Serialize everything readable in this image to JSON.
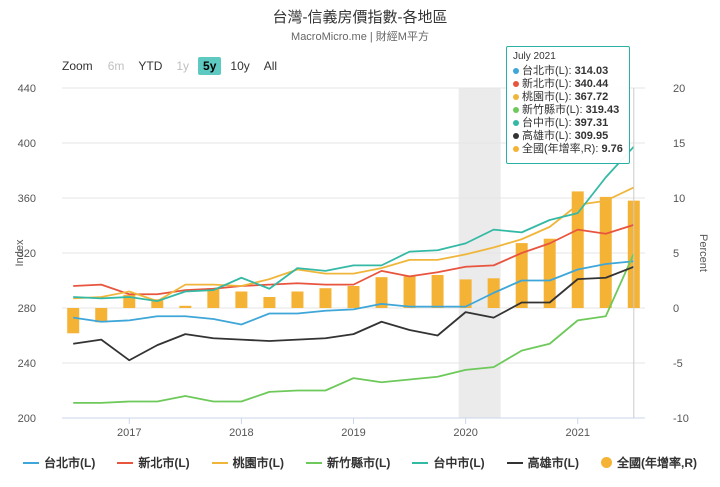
{
  "title": "台灣-信義房價指數-各地區",
  "subtitle": "MacroMicro.me | 財經M平方",
  "zoom": {
    "label": "Zoom",
    "buttons": [
      "6m",
      "YTD",
      "1y",
      "5y",
      "10y",
      "All"
    ],
    "selected": "5y"
  },
  "tooltip": {
    "title": "July 2021",
    "rows": [
      {
        "label": "台北市(L):",
        "value": "314.03",
        "color": "#3ea6d8"
      },
      {
        "label": "新北市(L):",
        "value": "340.44",
        "color": "#e8553e"
      },
      {
        "label": "桃園市(L):",
        "value": "367.72",
        "color": "#f0b63c"
      },
      {
        "label": "新竹縣市(L):",
        "value": "319.43",
        "color": "#6ec95b"
      },
      {
        "label": "台中市(L):",
        "value": "397.31",
        "color": "#34b9a5"
      },
      {
        "label": "高雄市(L):",
        "value": "309.95",
        "color": "#333333"
      },
      {
        "label": "全國(年增率,R):",
        "value": "9.76",
        "color": "#f5b335"
      }
    ]
  },
  "chart_data": {
    "type": "line",
    "x": [
      "2016-07",
      "2016-10",
      "2017-01",
      "2017-04",
      "2017-07",
      "2017-10",
      "2018-01",
      "2018-04",
      "2018-07",
      "2018-10",
      "2019-01",
      "2019-04",
      "2019-07",
      "2019-10",
      "2020-01",
      "2020-04",
      "2020-07",
      "2020-10",
      "2021-01",
      "2021-04",
      "2021-07"
    ],
    "xticks": [
      "2017",
      "2018",
      "2019",
      "2020",
      "2021"
    ],
    "xtick_values": [
      "2017-01",
      "2018-01",
      "2019-01",
      "2020-01",
      "2021-01"
    ],
    "ylabel_left": "Index",
    "ylabel_right": "Percent",
    "ylim_left": [
      200,
      440
    ],
    "yticks_left": [
      200,
      240,
      280,
      320,
      360,
      400,
      440
    ],
    "ylim_right": [
      -10,
      20
    ],
    "yticks_right": [
      -10,
      -5,
      0,
      5,
      10,
      15,
      20
    ],
    "highlight_band": [
      "2020-01",
      "2020-04"
    ],
    "series": [
      {
        "name": "台北市(L)",
        "axis": "left",
        "kind": "line",
        "color": "#3ea6d8",
        "values": [
          273,
          270,
          271,
          274,
          274,
          272,
          268,
          276,
          276,
          278,
          279,
          283,
          281,
          281,
          281,
          291,
          300,
          300,
          308,
          312,
          314.03
        ]
      },
      {
        "name": "新北市(L)",
        "axis": "left",
        "kind": "line",
        "color": "#e8553e",
        "values": [
          296,
          297,
          290,
          290,
          293,
          294,
          296,
          297,
          298,
          297,
          297,
          307,
          303,
          306,
          310,
          311,
          320,
          327,
          337,
          334,
          340.44
        ]
      },
      {
        "name": "桃園市(L)",
        "axis": "left",
        "kind": "line",
        "color": "#f0b63c",
        "values": [
          287,
          288,
          292,
          285,
          297,
          297,
          296,
          301,
          308,
          305,
          305,
          309,
          315,
          315,
          319,
          324,
          330,
          339,
          355,
          358,
          367.72
        ]
      },
      {
        "name": "新竹縣市(L)",
        "axis": "left",
        "kind": "line",
        "color": "#6ec95b",
        "values": [
          211,
          211,
          212,
          212,
          216,
          212,
          212,
          219,
          220,
          220,
          229,
          226,
          228,
          230,
          235,
          237,
          249,
          254,
          271,
          274,
          319.43
        ]
      },
      {
        "name": "台中市(L)",
        "axis": "left",
        "kind": "line",
        "color": "#34b9a5",
        "values": [
          288,
          287,
          288,
          285,
          292,
          293,
          302,
          294,
          309,
          307,
          311,
          311,
          321,
          322,
          327,
          337,
          335,
          344,
          349,
          375,
          397.31
        ]
      },
      {
        "name": "高雄市(L)",
        "axis": "left",
        "kind": "line",
        "color": "#333333",
        "values": [
          254,
          257,
          242,
          253,
          261,
          258,
          257,
          256,
          257,
          258,
          261,
          270,
          264,
          260,
          277,
          273,
          284,
          284,
          301,
          302,
          309.95
        ]
      },
      {
        "name": "全國(年增率,R)",
        "axis": "right",
        "kind": "bar",
        "color": "#f5b335",
        "values": [
          -2.3,
          -1.3,
          1.2,
          0.8,
          0.2,
          1.8,
          1.5,
          1.0,
          1.5,
          1.8,
          2.0,
          2.8,
          2.9,
          3.0,
          2.6,
          2.7,
          5.9,
          6.3,
          10.6,
          10.1,
          9.76
        ]
      }
    ]
  },
  "legend": [
    {
      "label": "台北市(L)",
      "color": "#3ea6d8",
      "shape": "line"
    },
    {
      "label": "新北市(L)",
      "color": "#e8553e",
      "shape": "line"
    },
    {
      "label": "桃園市(L)",
      "color": "#f0b63c",
      "shape": "line"
    },
    {
      "label": "新竹縣市(L)",
      "color": "#6ec95b",
      "shape": "line"
    },
    {
      "label": "台中市(L)",
      "color": "#34b9a5",
      "shape": "line"
    },
    {
      "label": "高雄市(L)",
      "color": "#333333",
      "shape": "line"
    },
    {
      "label": "全國(年增率,R)",
      "color": "#f5b335",
      "shape": "dot"
    }
  ]
}
